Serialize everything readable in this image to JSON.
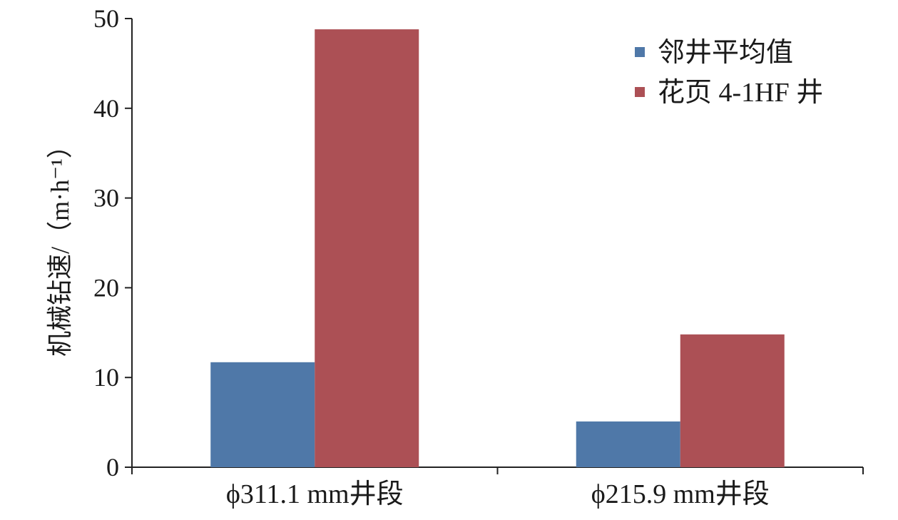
{
  "chart_data": {
    "type": "bar",
    "title": "",
    "xlabel": "",
    "ylabel": "机械钻速/（m·h⁻¹）",
    "ylim": [
      0,
      50
    ],
    "yticks": [
      0,
      10,
      20,
      30,
      40,
      50
    ],
    "categories": [
      "ϕ311.1 mm井段",
      "ϕ215.9 mm井段"
    ],
    "series": [
      {
        "name": "邻井平均值",
        "values": [
          11.7,
          5.1
        ],
        "color": "#4f78a8"
      },
      {
        "name": "花页 4-1HF 井",
        "values": [
          48.8,
          14.8
        ],
        "color": "#ac5055"
      }
    ],
    "grid": false,
    "legend_position": "top-right"
  }
}
